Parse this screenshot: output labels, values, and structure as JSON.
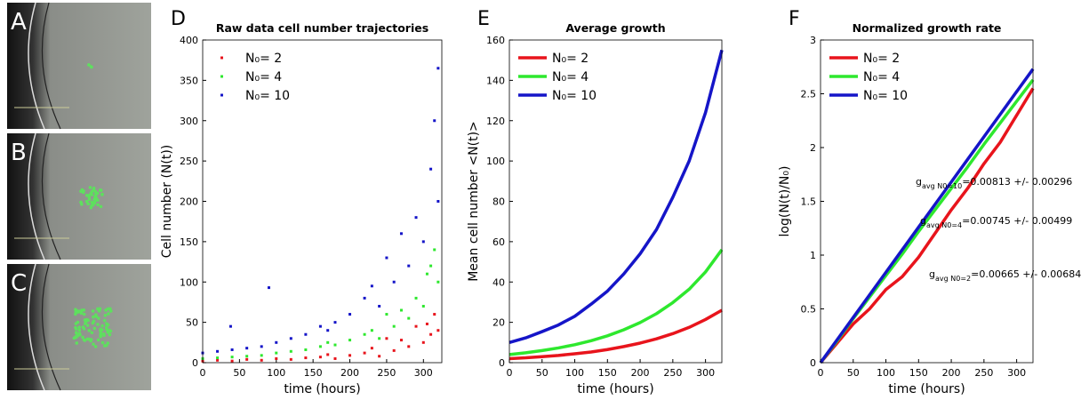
{
  "images": [
    {
      "label": "A"
    },
    {
      "label": "B"
    },
    {
      "label": "C"
    }
  ],
  "chart_data": [
    {
      "panel": "D",
      "type": "scatter",
      "title": "Raw data cell number trajectories",
      "xlabel": "time (hours)",
      "ylabel": "Cell number (N(t))",
      "xlim": [
        0,
        325
      ],
      "xticks": [
        0,
        50,
        100,
        150,
        200,
        250,
        300
      ],
      "ylim": [
        0,
        400
      ],
      "yticks": [
        0,
        50,
        100,
        150,
        200,
        250,
        300,
        350,
        400
      ],
      "legend": "upper left",
      "series": [
        {
          "name": "N₀= 2",
          "color": "#e8141c",
          "x": [
            0,
            20,
            40,
            60,
            80,
            100,
            120,
            140,
            160,
            180,
            200,
            220,
            240,
            260,
            280,
            300,
            320,
            250,
            290,
            310,
            170,
            230,
            270,
            315,
            305
          ],
          "values": [
            2,
            3,
            2,
            4,
            3,
            5,
            4,
            6,
            7,
            5,
            9,
            12,
            8,
            15,
            20,
            25,
            40,
            30,
            45,
            35,
            10,
            18,
            28,
            60,
            48
          ]
        },
        {
          "name": "N₀= 4",
          "color": "#2ee82e",
          "x": [
            0,
            20,
            40,
            60,
            80,
            100,
            120,
            140,
            160,
            180,
            200,
            220,
            240,
            260,
            280,
            300,
            320,
            250,
            290,
            310,
            170,
            230,
            270,
            315,
            305
          ],
          "values": [
            5,
            6,
            7,
            8,
            9,
            12,
            14,
            16,
            20,
            22,
            28,
            35,
            30,
            45,
            55,
            70,
            100,
            60,
            80,
            120,
            25,
            40,
            65,
            140,
            110
          ]
        },
        {
          "name": "N₀= 10",
          "color": "#1515c8",
          "x": [
            0,
            20,
            40,
            60,
            80,
            100,
            120,
            140,
            160,
            180,
            200,
            220,
            240,
            260,
            280,
            300,
            320,
            250,
            290,
            310,
            170,
            230,
            270,
            315,
            320,
            90,
            38
          ],
          "values": [
            12,
            14,
            16,
            18,
            20,
            25,
            30,
            35,
            45,
            50,
            60,
            80,
            70,
            100,
            120,
            150,
            200,
            130,
            180,
            240,
            40,
            95,
            160,
            300,
            365,
            93,
            45
          ]
        }
      ]
    },
    {
      "panel": "E",
      "type": "line",
      "title": "Average growth",
      "xlabel": "time (hours)",
      "ylabel": "Mean cell number <N(t)>",
      "xlim": [
        0,
        325
      ],
      "xticks": [
        0,
        50,
        100,
        150,
        200,
        250,
        300
      ],
      "ylim": [
        0,
        160
      ],
      "yticks": [
        0,
        20,
        40,
        60,
        80,
        100,
        120,
        140,
        160
      ],
      "legend": "upper left",
      "x": [
        0,
        25,
        50,
        75,
        100,
        125,
        150,
        175,
        200,
        225,
        250,
        275,
        300,
        325
      ],
      "series": [
        {
          "name": "N₀= 2",
          "color": "#e8141c",
          "values": [
            2,
            2.4,
            3,
            3.6,
            4.4,
            5.3,
            6.5,
            8,
            9.7,
            11.8,
            14.4,
            17.5,
            21.4,
            26
          ]
        },
        {
          "name": "N₀= 4",
          "color": "#2ee82e",
          "values": [
            4,
            4.9,
            6,
            7.3,
            8.9,
            10.9,
            13.3,
            16.3,
            19.9,
            24.3,
            29.8,
            36.4,
            45,
            56
          ]
        },
        {
          "name": "N₀= 10",
          "color": "#1515c8",
          "values": [
            10,
            12.3,
            15.4,
            18.7,
            23,
            29,
            35.5,
            44,
            54,
            66,
            82,
            100,
            124,
            155
          ]
        }
      ]
    },
    {
      "panel": "F",
      "type": "line",
      "title": "Normalized growth rate",
      "xlabel": "time (hours)",
      "ylabel": "log(N(t)/N₀)",
      "xlim": [
        0,
        325
      ],
      "xticks": [
        0,
        50,
        100,
        150,
        200,
        250,
        300
      ],
      "ylim": [
        0,
        3
      ],
      "yticks": [
        0,
        0.5,
        1,
        1.5,
        2,
        2.5,
        3
      ],
      "legend": "upper left",
      "x": [
        0,
        25,
        50,
        75,
        100,
        125,
        150,
        175,
        200,
        225,
        250,
        275,
        300,
        325
      ],
      "series": [
        {
          "name": "N₀= 2",
          "color": "#e8141c",
          "values": [
            0,
            0.18,
            0.36,
            0.5,
            0.68,
            0.8,
            0.98,
            1.2,
            1.42,
            1.62,
            1.85,
            2.05,
            2.3,
            2.55
          ]
        },
        {
          "name": "N₀= 4",
          "color": "#2ee82e",
          "values": [
            0,
            0.2,
            0.41,
            0.61,
            0.81,
            1.01,
            1.22,
            1.42,
            1.62,
            1.82,
            2.03,
            2.23,
            2.43,
            2.63
          ]
        },
        {
          "name": "N₀= 10",
          "color": "#1515c8",
          "values": [
            0,
            0.21,
            0.42,
            0.63,
            0.84,
            1.05,
            1.26,
            1.47,
            1.68,
            1.89,
            2.1,
            2.31,
            2.52,
            2.73
          ]
        }
      ],
      "annotations": [
        {
          "text": "g",
          "sub": "avg N0=10",
          "rest": "=0.00813 +/- 0.00296"
        },
        {
          "text": "g",
          "sub": "avg N0=4",
          "rest": "=0.00745 +/- 0.00499"
        },
        {
          "text": "g",
          "sub": "avg N0=2",
          "rest": "=0.00665 +/- 0.00684"
        }
      ]
    }
  ]
}
